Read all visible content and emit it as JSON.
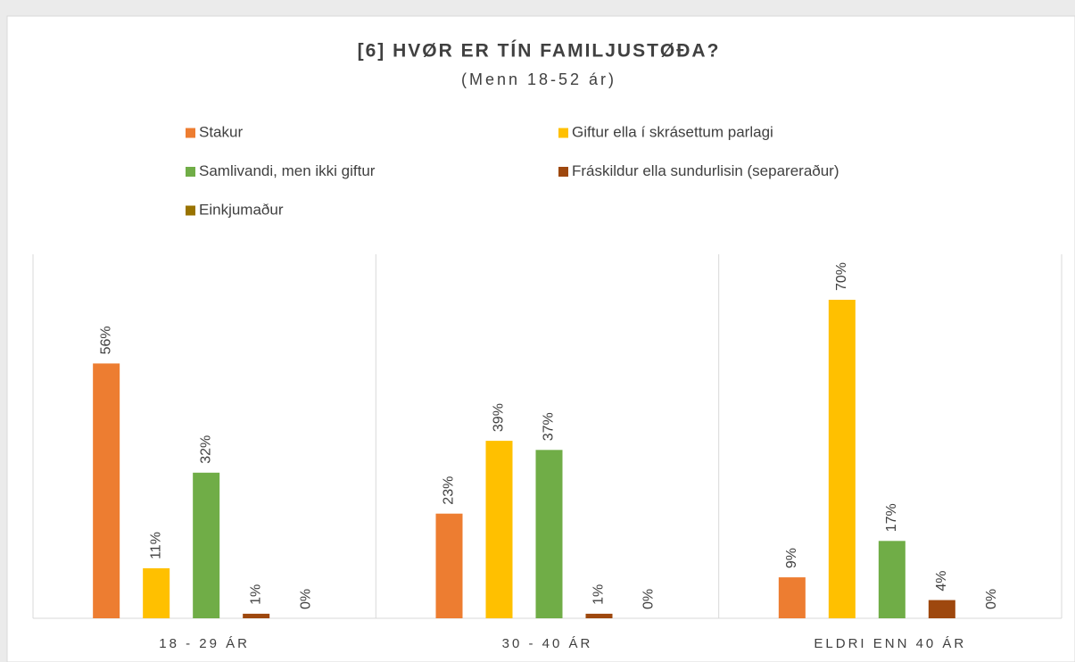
{
  "chart_data": {
    "type": "bar",
    "title": "[6] HVØR ER TÍN FAMILJUSTØÐA?",
    "subtitle": "(Menn 18-52 ár)",
    "categories": [
      "18 - 29 ÁR",
      "30 - 40 ÁR",
      "ELDRI ENN 40 ÁR"
    ],
    "series": [
      {
        "name": "Stakur",
        "color": "#ed7d31",
        "values": [
          56,
          23,
          9
        ],
        "value_labels": [
          "56%",
          "23%",
          "9%"
        ]
      },
      {
        "name": "Giftur ella í skrásettum parlagi",
        "color": "#ffc000",
        "values": [
          11,
          39,
          70
        ],
        "value_labels": [
          "11%",
          "39%",
          "70%"
        ]
      },
      {
        "name": "Samlivandi, men ikki giftur",
        "color": "#70ad47",
        "values": [
          32,
          37,
          17
        ],
        "value_labels": [
          "32%",
          "37%",
          "17%"
        ]
      },
      {
        "name": "Fráskildur ella sundurlisin (separeraður)",
        "color": "#9e480e",
        "values": [
          1,
          1,
          4
        ],
        "value_labels": [
          "1%",
          "1%",
          "4%"
        ]
      },
      {
        "name": "Einkjumaður",
        "color": "#997300",
        "values": [
          0,
          0,
          0
        ],
        "value_labels": [
          "0%",
          "0%",
          "0%"
        ]
      }
    ],
    "ylim": [
      0,
      80
    ]
  }
}
